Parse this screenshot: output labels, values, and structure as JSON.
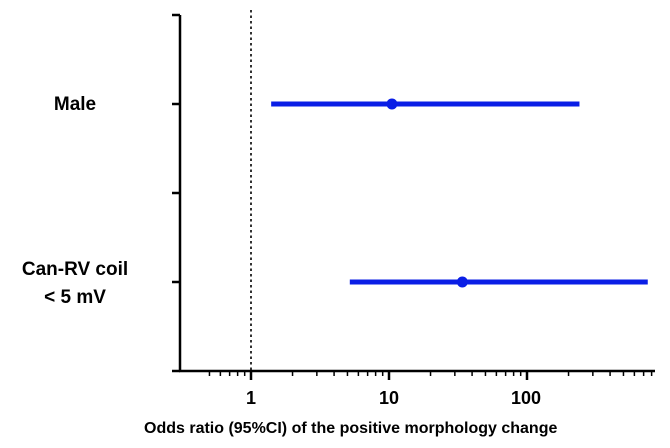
{
  "chart_data": {
    "type": "forest",
    "title": "",
    "xlabel": "Odds ratio (95%CI) of the positive morphology change",
    "ylabel": "",
    "x_scale": "log",
    "xlim": [
      0.5,
      800
    ],
    "x_tick_labels": [
      "1",
      "10",
      "100"
    ],
    "x_ticks": [
      1,
      10,
      100
    ],
    "reference_line": 1,
    "series_color": "#0a1ee6",
    "grid": false,
    "rows": [
      {
        "label": "Male",
        "estimate": 10.5,
        "ci_low": 1.4,
        "ci_high": 240
      },
      {
        "label": "Can-RV coil\n< 5 mV",
        "label_line1": "Can-RV coil",
        "label_line2": "< 5 mV",
        "estimate": 34,
        "ci_low": 5.2,
        "ci_high": 750
      }
    ]
  }
}
